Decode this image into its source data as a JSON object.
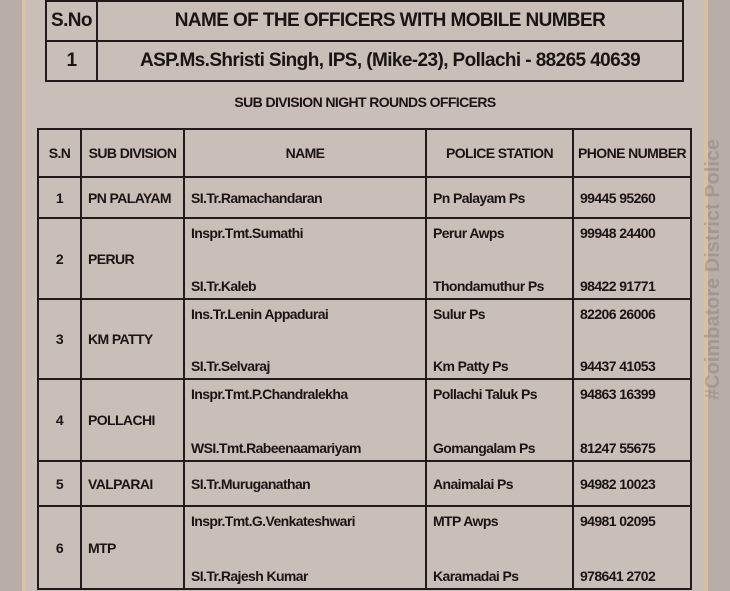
{
  "top_table": {
    "headers": [
      "S.No",
      "NAME OF THE OFFICERS WITH MOBILE NUMBER"
    ],
    "row": [
      "1",
      "ASP.Ms.Shristi Singh, IPS, (Mike-23), Pollachi - 88265 40639"
    ]
  },
  "subtitle": "SUB DIVISION NIGHT ROUNDS OFFICERS",
  "main_table": {
    "headers": [
      "S.N",
      "SUB DIVISION",
      "NAME",
      "POLICE STATION",
      "PHONE NUMBER"
    ],
    "rows": [
      {
        "sn": "1",
        "division": "PN PALAYAM",
        "officers": [
          {
            "name": "SI.Tr.Ramachandaran",
            "station": "Pn Palayam Ps",
            "phone": "99445 95260"
          }
        ]
      },
      {
        "sn": "2",
        "division": "PERUR",
        "officers": [
          {
            "name": "Inspr.Tmt.Sumathi",
            "station": "Perur Awps",
            "phone": "99948 24400"
          },
          {
            "name": "SI.Tr.Kaleb",
            "station": "Thondamuthur Ps",
            "phone": "98422 91771"
          }
        ]
      },
      {
        "sn": "3",
        "division": "KM  PATTY",
        "officers": [
          {
            "name": "Ins.Tr.Lenin Appadurai",
            "station": "Sulur Ps",
            "phone": "82206 26006"
          },
          {
            "name": "SI.Tr.Selvaraj",
            "station": "Km Patty Ps",
            "phone": "94437 41053"
          }
        ]
      },
      {
        "sn": "4",
        "division": "POLLACHI",
        "officers": [
          {
            "name": "Inspr.Tmt.P.Chandralekha",
            "station": "Pollachi Taluk Ps",
            "phone": "94863 16399"
          },
          {
            "name": "WSI.Tmt.Rabeenaamariyam",
            "station": "Gomangalam Ps",
            "phone": "81247 55675"
          }
        ]
      },
      {
        "sn": "5",
        "division": "VALPARAI",
        "officers": [
          {
            "name": "SI.Tr.Muruganathan",
            "station": "Anaimalai Ps",
            "phone": "94982 10023"
          }
        ]
      },
      {
        "sn": "6",
        "division": "MTP",
        "officers": [
          {
            "name": "Inspr.Tmt.G.Venkateshwari",
            "station": "MTP Awps",
            "phone": "94981 02095"
          },
          {
            "name": "SI.Tr.Rajesh Kumar",
            "station": "Karamadai Ps",
            "phone": "978641 2702"
          }
        ]
      }
    ]
  },
  "watermark": "#Coimbatore District Police"
}
